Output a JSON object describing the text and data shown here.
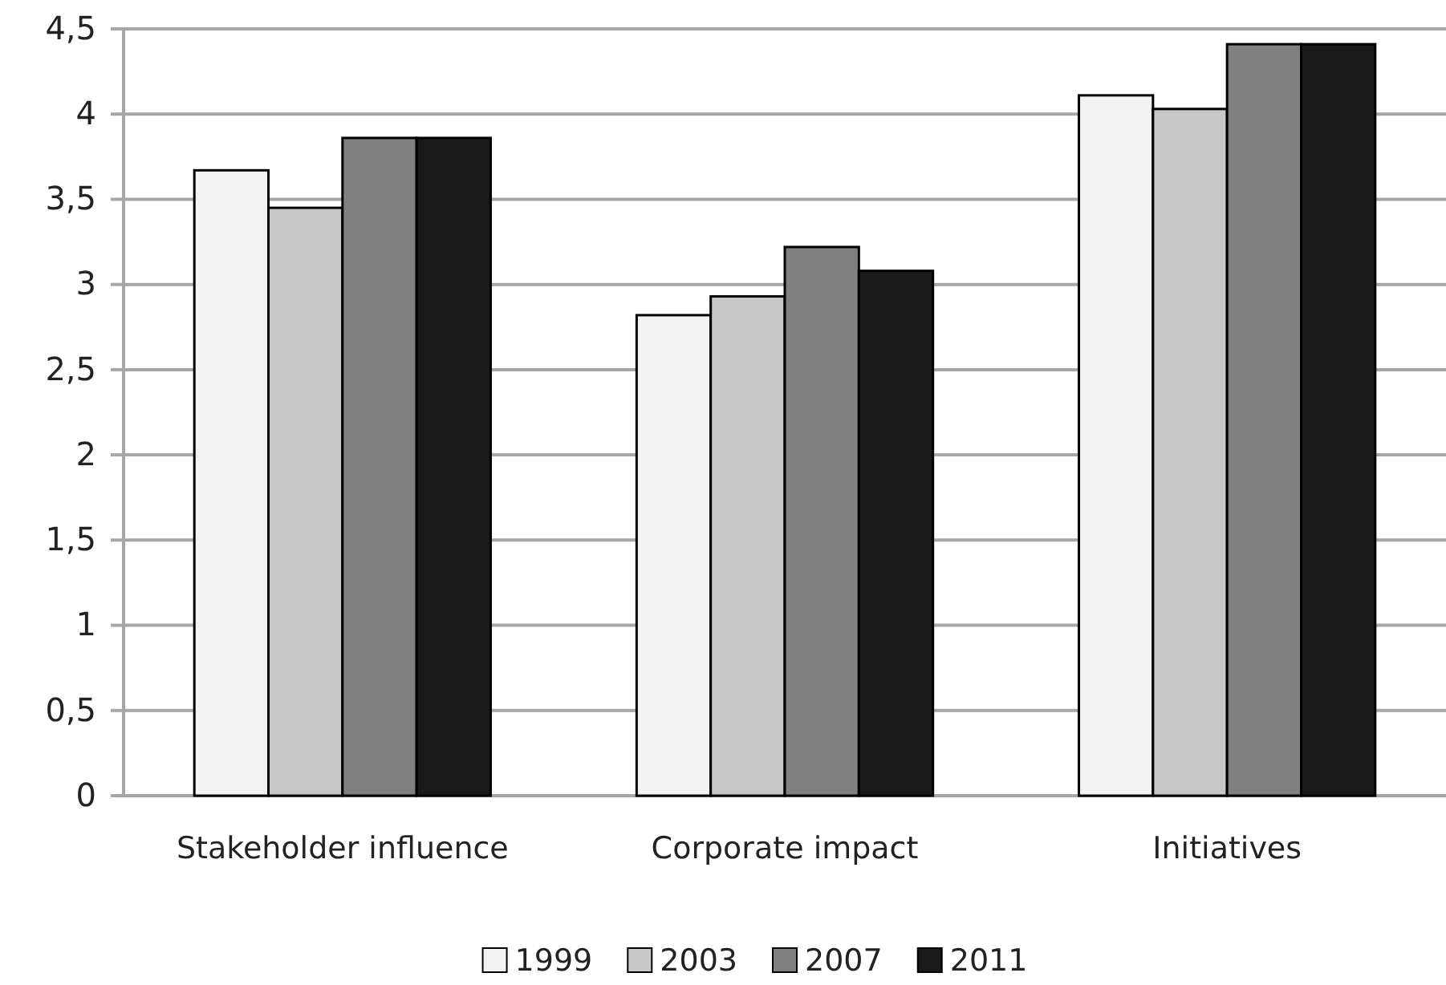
{
  "chart_data": {
    "type": "bar",
    "categories": [
      "Stakeholder influence",
      "Corporate impact",
      "Initiatives"
    ],
    "series": [
      {
        "name": "1999",
        "color": "#f2f2f2",
        "values": [
          3.67,
          2.82,
          4.11
        ]
      },
      {
        "name": "2003",
        "color": "#c8c8c8",
        "values": [
          3.45,
          2.93,
          4.03
        ]
      },
      {
        "name": "2007",
        "color": "#808080",
        "values": [
          3.86,
          3.22,
          4.41
        ]
      },
      {
        "name": "2011",
        "color": "#1a1a1a",
        "values": [
          3.86,
          3.08,
          4.41
        ]
      }
    ],
    "ylim": [
      0,
      4.5
    ],
    "yticks": [
      0,
      {
        "value": 0.5,
        "label": "0,5"
      },
      1,
      {
        "value": 1.5,
        "label": "1,5"
      },
      2,
      {
        "value": 2.5,
        "label": "2,5"
      },
      3,
      {
        "value": 3.5,
        "label": "3,5"
      },
      4,
      {
        "value": 4.5,
        "label": "4,5"
      }
    ],
    "grid": "y",
    "legend": "bottom"
  }
}
